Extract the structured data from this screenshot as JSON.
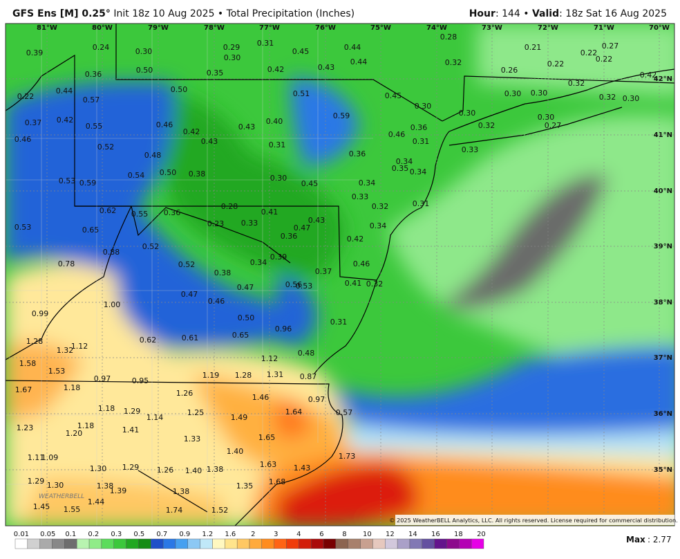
{
  "header": {
    "title": "GFS Ens [M] 0.25°",
    "subtitle": " Init 18z 10 Aug 2025 • Total Precipitation (Inches)",
    "hour_label": "Hour",
    "hour_value": ": 144 • ",
    "valid_label": "Valid",
    "valid_value": ": 18z Sat 16 Aug 2025"
  },
  "map": {
    "longitudes": [
      "81°W",
      "80°W",
      "79°W",
      "78°W",
      "77°W",
      "76°W",
      "75°W",
      "74°W",
      "73°W",
      "72°W",
      "71°W",
      "70°W"
    ],
    "latitudes": [
      "42°N",
      "41°N",
      "40°N",
      "39°N",
      "38°N",
      "37°N",
      "36°N",
      "35°N"
    ],
    "precip_labels": [
      "0.39",
      "0.24",
      "0.30",
      "0.29",
      "0.30",
      "0.31",
      "0.45",
      "0.44",
      "0.44",
      "0.28",
      "0.21",
      "0.22",
      "0.27",
      "0.22",
      "0.42",
      "0.32",
      "0.26",
      "0.22",
      "0.36",
      "0.50",
      "0.35",
      "0.42",
      "0.43",
      "0.22",
      "0.44",
      "0.57",
      "0.50",
      "0.51",
      "0.45",
      "0.30",
      "0.30",
      "0.30",
      "0.32",
      "0.32",
      "0.30",
      "0.37",
      "0.42",
      "0.55",
      "0.46",
      "0.42",
      "0.43",
      "0.40",
      "0.59",
      "0.30",
      "0.32",
      "0.30",
      "0.27",
      "0.46",
      "0.52",
      "0.43",
      "0.31",
      "0.46",
      "0.36",
      "0.31",
      "0.33",
      "0.48",
      "0.36",
      "0.34",
      "0.35",
      "0.34",
      "0.53",
      "0.59",
      "0.54",
      "0.50",
      "0.38",
      "0.30",
      "0.45",
      "0.34",
      "0.33",
      "0.32",
      "0.31",
      "0.62",
      "0.55",
      "0.36",
      "0.28",
      "0.41",
      "0.23",
      "0.33",
      "0.47",
      "0.43",
      "0.34",
      "0.53",
      "0.65",
      "0.36",
      "0.42",
      "0.88",
      "0.52",
      "0.39",
      "0.34",
      "0.46",
      "0.78",
      "0.52",
      "0.38",
      "0.37",
      "0.41",
      "0.32",
      "0.56",
      "0.53",
      "0.47",
      "0.47",
      "0.46",
      "1.00",
      "0.99",
      "0.50",
      "0.31",
      "0.96",
      "0.62",
      "0.61",
      "0.65",
      "1.28",
      "1.32",
      "1.12",
      "0.48",
      "1.12",
      "1.58",
      "1.53",
      "0.97",
      "0.95",
      "1.19",
      "1.28",
      "1.31",
      "0.87",
      "1.67",
      "1.18",
      "1.26",
      "1.46",
      "0.97",
      "1.18",
      "1.29",
      "1.14",
      "1.25",
      "1.49",
      "1.64",
      "0.57",
      "1.23",
      "1.18",
      "1.20",
      "1.41",
      "1.33",
      "1.65",
      "1.40",
      "1.11",
      "1.09",
      "1.73",
      "1.30",
      "1.29",
      "1.26",
      "1.40",
      "1.38",
      "1.63",
      "1.43",
      "1.29",
      "1.30",
      "1.38",
      "1.39",
      "1.38",
      "1.35",
      "1.68",
      "1.44",
      "1.45",
      "1.55",
      "1.74",
      "1.52"
    ],
    "logo": "WEATHERBELL",
    "copyright": "© 2025 WeatherBELL Analytics, LLC. All rights reserved. License required for commercial distribution."
  },
  "legend": {
    "labels": [
      "0.01",
      "0.05",
      "0.1",
      "0.2",
      "0.3",
      "0.5",
      "0.7",
      "0.9",
      "1.2",
      "1.6",
      "2",
      "3",
      "4",
      "6",
      "8",
      "10",
      "12",
      "14",
      "16",
      "18",
      "20"
    ],
    "colors": [
      "#ffffff",
      "#d0d0d0",
      "#aaaaaa",
      "#888888",
      "#6e6e6e",
      "#b8f4b0",
      "#90ec88",
      "#5cdc5c",
      "#3cc83c",
      "#22a822",
      "#148c14",
      "#1e50c8",
      "#2a78e6",
      "#46a0f0",
      "#8cc8f4",
      "#c0e8f8",
      "#fff8c0",
      "#ffe48c",
      "#ffc864",
      "#ffaa3c",
      "#ff8c1e",
      "#ff6414",
      "#f03c0a",
      "#d21e0a",
      "#aa0a0a",
      "#780000",
      "#8c6450",
      "#a8806c",
      "#c8a090",
      "#e6c8be",
      "#d2c8dc",
      "#aaa0c8",
      "#8278b4",
      "#6450a0",
      "#64148c",
      "#8c0a8c",
      "#b400b4",
      "#e600e6"
    ],
    "max_label": "Max",
    "max_value": ": 2.77"
  }
}
